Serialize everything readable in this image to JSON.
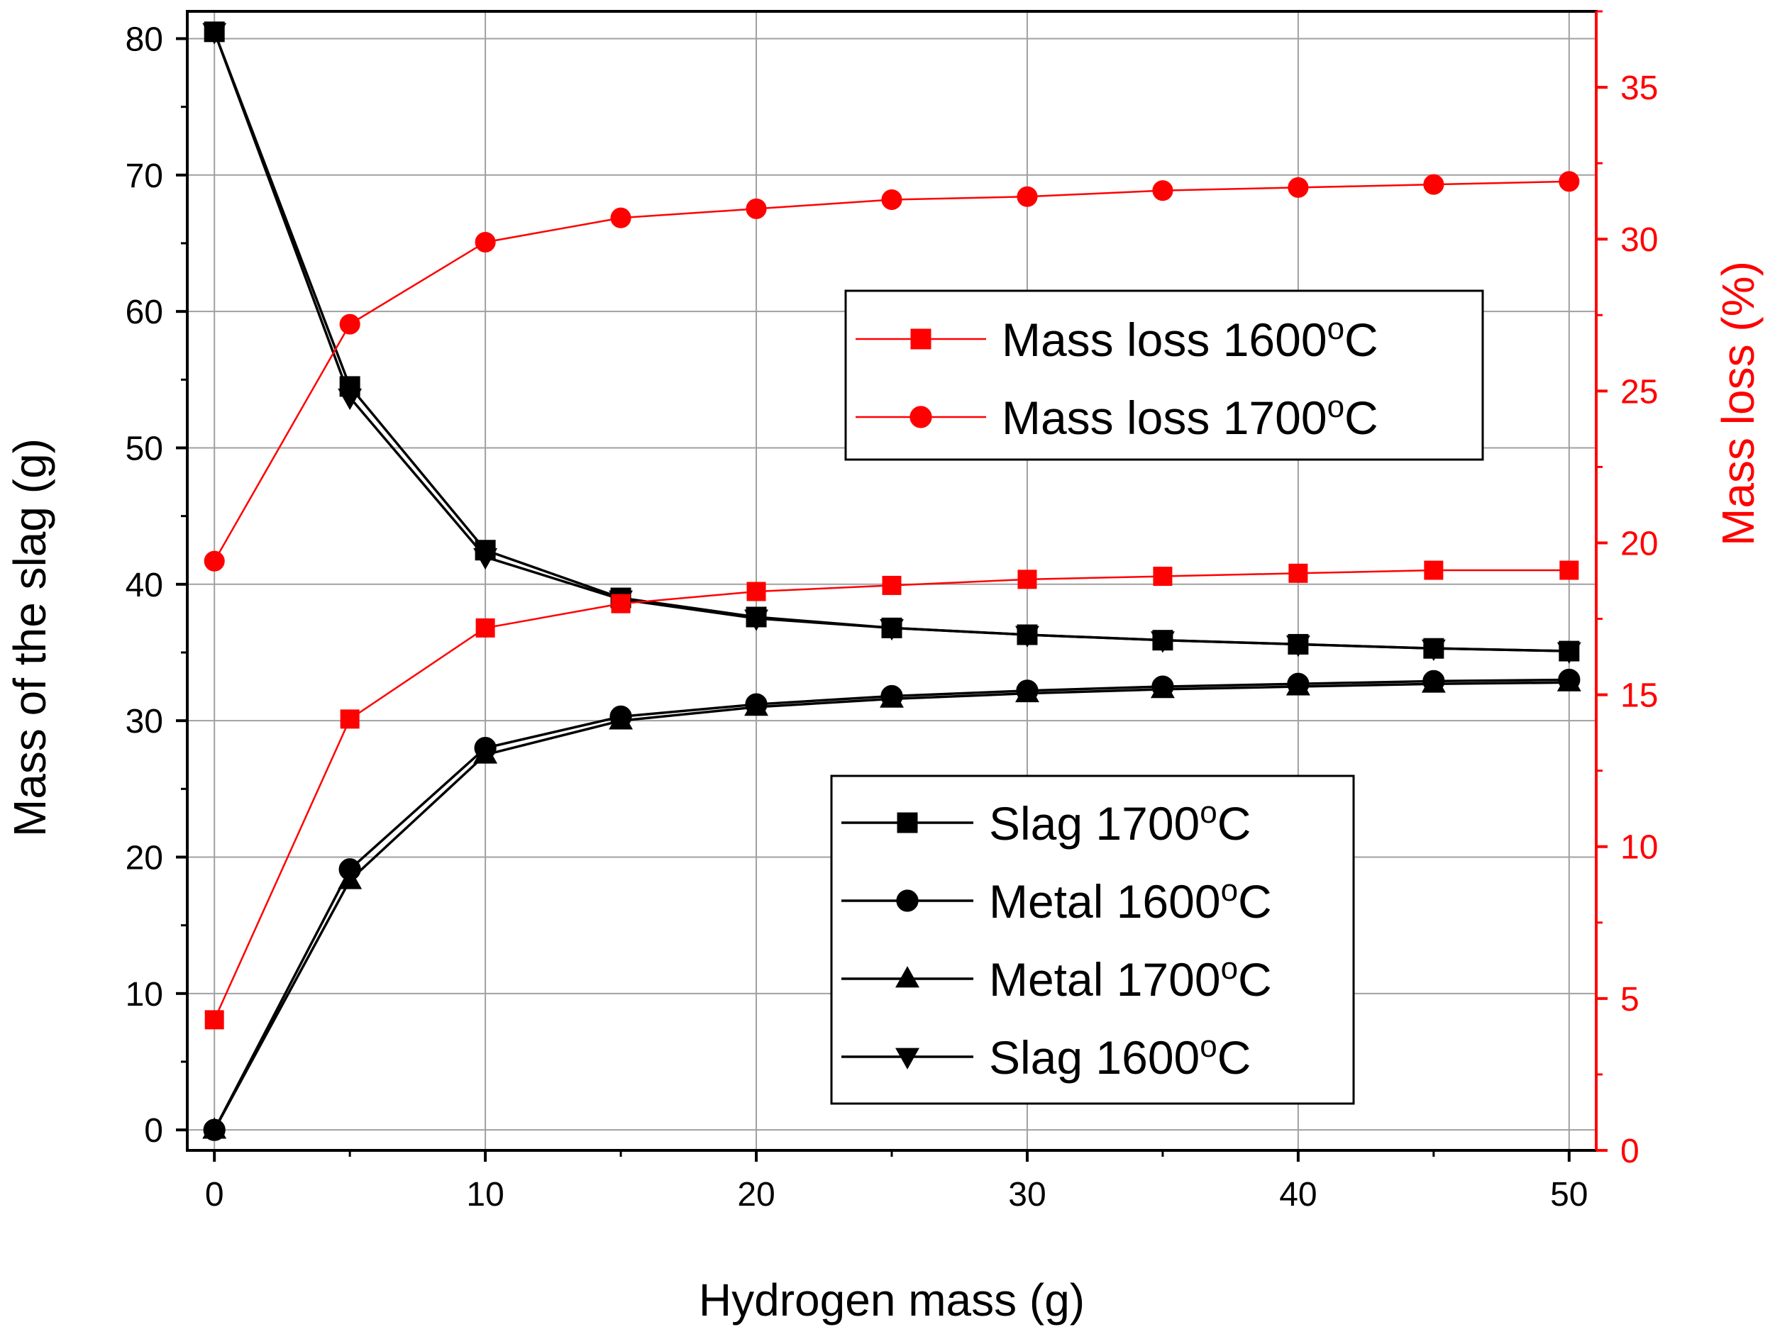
{
  "chart_data": {
    "type": "line",
    "title": "",
    "x": [
      0,
      5,
      10,
      15,
      20,
      25,
      30,
      35,
      40,
      45,
      50
    ],
    "xlabel": "Hydrogen mass (g)",
    "xlim": [
      -1,
      51
    ],
    "xticks": [
      0,
      10,
      20,
      30,
      40,
      50
    ],
    "ylabel": "Mass of the slag (g)",
    "ylim": [
      -1.5,
      82
    ],
    "yticks": [
      0,
      10,
      20,
      30,
      40,
      50,
      60,
      70,
      80
    ],
    "y2label": "Mass loss (%)",
    "y2lim": [
      0,
      37.5
    ],
    "y2ticks": [
      0,
      5,
      10,
      15,
      20,
      25,
      30,
      35
    ],
    "grid": true,
    "colors": {
      "left_axis": "#000000",
      "right_axis": "#ff0000",
      "grid": "#a0a0a0"
    },
    "series": [
      {
        "name": "Slag 1700",
        "axis": "left",
        "color": "#000000",
        "marker": "square",
        "values": [
          80.5,
          54.5,
          42.5,
          39.0,
          37.6,
          36.8,
          36.3,
          35.9,
          35.6,
          35.3,
          35.1
        ]
      },
      {
        "name": "Metal 1600",
        "axis": "left",
        "color": "#000000",
        "marker": "circle",
        "values": [
          0,
          19.1,
          28.0,
          30.3,
          31.2,
          31.8,
          32.2,
          32.5,
          32.7,
          32.9,
          33.0
        ]
      },
      {
        "name": "Metal 1700",
        "axis": "left",
        "color": "#000000",
        "marker": "triangle-up",
        "values": [
          0,
          18.3,
          27.5,
          30.0,
          31.0,
          31.6,
          32.0,
          32.3,
          32.5,
          32.7,
          32.8
        ]
      },
      {
        "name": "Slag 1600",
        "axis": "left",
        "color": "#000000",
        "marker": "triangle-down",
        "values": [
          80.5,
          53.7,
          42.0,
          38.9,
          37.5,
          36.8,
          36.3,
          35.9,
          35.6,
          35.3,
          35.1
        ]
      },
      {
        "name": "Mass loss 1600",
        "axis": "right",
        "color": "#ff0000",
        "marker": "square",
        "values": [
          4.3,
          14.2,
          17.2,
          18.0,
          18.4,
          18.6,
          18.8,
          18.9,
          19.0,
          19.1,
          19.1
        ]
      },
      {
        "name": "Mass loss 1700",
        "axis": "right",
        "color": "#ff0000",
        "marker": "circle",
        "values": [
          19.4,
          27.2,
          29.9,
          30.7,
          31.0,
          31.3,
          31.4,
          31.6,
          31.7,
          31.8,
          31.9
        ]
      }
    ],
    "legends": [
      {
        "placement": "upper-center",
        "entries": [
          {
            "series": "Mass loss 1600",
            "label": "Mass loss 1600",
            "sup": "o",
            "unit": "C"
          },
          {
            "series": "Mass loss 1700",
            "label": "Mass loss 1700",
            "sup": "o",
            "unit": "C"
          }
        ]
      },
      {
        "placement": "lower-center",
        "entries": [
          {
            "series": "Slag 1700",
            "label": "Slag 1700",
            "sup": "o",
            "unit": "C"
          },
          {
            "series": "Metal 1600",
            "label": "Metal 1600",
            "sup": "o",
            "unit": "C"
          },
          {
            "series": "Metal 1700",
            "label": "Metal 1700",
            "sup": "o",
            "unit": "C"
          },
          {
            "series": "Slag 1600",
            "label": "Slag 1600",
            "sup": "o",
            "unit": "C"
          }
        ]
      }
    ]
  }
}
